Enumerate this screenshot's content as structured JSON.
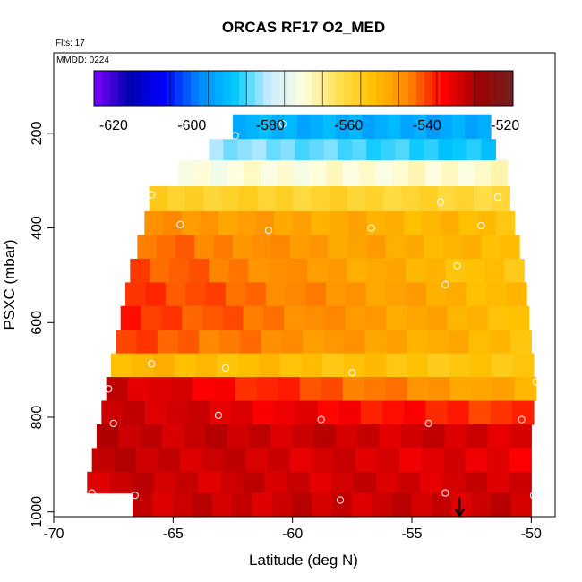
{
  "chart_data": {
    "type": "heatmap",
    "title": "ORCAS RF17 O2_MED",
    "notes": [
      "Flts: 17",
      "MMDD: 0224"
    ],
    "xlabel": "Latitude (deg N)",
    "ylabel": "PSXC (mbar)",
    "xlim": [
      -70,
      -49
    ],
    "ylim": [
      1010,
      30
    ],
    "xticks": [
      -70,
      -65,
      -60,
      -55,
      -50
    ],
    "yticks": [
      200,
      400,
      600,
      800,
      1000
    ],
    "colorbar": {
      "range": [
        -625,
        -518
      ],
      "ticks": [
        -620,
        -600,
        -580,
        -560,
        -540,
        -520
      ],
      "colors": [
        "#7f00ff",
        "#0000b0",
        "#0000ff",
        "#0088ff",
        "#00c8ff",
        "#c8ecff",
        "#ffffe0",
        "#ffe050",
        "#ffc000",
        "#ff8800",
        "#ff0000",
        "#a00000",
        "#702020"
      ]
    },
    "layers": [
      {
        "p": 160,
        "p2": 212,
        "lat": [
          -62.5,
          -51.7
        ],
        "v0": -592,
        "v1": -594
      },
      {
        "p": 212,
        "p2": 257,
        "lat": [
          -63.5,
          -51.5
        ],
        "v0": -582,
        "v1": -590
      },
      {
        "p": 257,
        "p2": 312,
        "lat": [
          -64.8,
          -51.0
        ],
        "v0": -572,
        "v1": -570
      },
      {
        "p": 312,
        "p2": 365,
        "lat": [
          -66.0,
          -50.9
        ],
        "v0": -558,
        "v1": -560
      },
      {
        "p": 365,
        "p2": 415,
        "lat": [
          -66.2,
          -50.7
        ],
        "v0": -546,
        "v1": -554
      },
      {
        "p": 415,
        "p2": 465,
        "lat": [
          -66.5,
          -50.5
        ],
        "v0": -542,
        "v1": -554
      },
      {
        "p": 465,
        "p2": 515,
        "lat": [
          -66.8,
          -50.3
        ],
        "v0": -540,
        "v1": -556
      },
      {
        "p": 515,
        "p2": 565,
        "lat": [
          -67.0,
          -50.2
        ],
        "v0": -538,
        "v1": -554
      },
      {
        "p": 565,
        "p2": 615,
        "lat": [
          -67.2,
          -50.1
        ],
        "v0": -538,
        "v1": -554
      },
      {
        "p": 615,
        "p2": 665,
        "lat": [
          -67.4,
          -50.0
        ],
        "v0": -540,
        "v1": -554
      },
      {
        "p": 665,
        "p2": 715,
        "lat": [
          -67.6,
          -49.9
        ],
        "v0": -552,
        "v1": -556
      },
      {
        "p": 715,
        "p2": 765,
        "lat": [
          -67.8,
          -49.8
        ],
        "v0": -530,
        "v1": -552
      },
      {
        "p": 765,
        "p2": 815,
        "lat": [
          -68.0,
          -49.9
        ],
        "v0": -530,
        "v1": -540
      },
      {
        "p": 815,
        "p2": 865,
        "lat": [
          -68.2,
          -50.0
        ],
        "v0": -530,
        "v1": -532
      },
      {
        "p": 865,
        "p2": 915,
        "lat": [
          -68.4,
          -50.0
        ],
        "v0": -530,
        "v1": -534
      },
      {
        "p": 915,
        "p2": 960,
        "lat": [
          -68.6,
          -50.0
        ],
        "v0": -531,
        "v1": -532
      },
      {
        "p": 960,
        "p2": 1010,
        "lat": [
          -66.7,
          -50.0
        ],
        "v0": -531,
        "v1": -531
      }
    ],
    "points": [
      {
        "lat": -60.4,
        "p": 180
      },
      {
        "lat": -62.4,
        "p": 205
      },
      {
        "lat": -51.5,
        "p": 200
      },
      {
        "lat": -65.9,
        "p": 330
      },
      {
        "lat": -53.8,
        "p": 345
      },
      {
        "lat": -51.4,
        "p": 335
      },
      {
        "lat": -66.4,
        "p": 400
      },
      {
        "lat": -64.7,
        "p": 393
      },
      {
        "lat": -61.0,
        "p": 405
      },
      {
        "lat": -56.7,
        "p": 400
      },
      {
        "lat": -52.1,
        "p": 395
      },
      {
        "lat": -53.1,
        "p": 480
      },
      {
        "lat": -67.7,
        "p": 535
      },
      {
        "lat": -53.6,
        "p": 520
      },
      {
        "lat": -65.9,
        "p": 687
      },
      {
        "lat": -62.8,
        "p": 696
      },
      {
        "lat": -57.5,
        "p": 706
      },
      {
        "lat": -49.8,
        "p": 725
      },
      {
        "lat": -67.7,
        "p": 740
      },
      {
        "lat": -63.1,
        "p": 796
      },
      {
        "lat": -67.5,
        "p": 813
      },
      {
        "lat": -58.8,
        "p": 805
      },
      {
        "lat": -54.3,
        "p": 813
      },
      {
        "lat": -50.4,
        "p": 805
      },
      {
        "lat": -68.4,
        "p": 960
      },
      {
        "lat": -66.6,
        "p": 965
      },
      {
        "lat": -58.0,
        "p": 975
      },
      {
        "lat": -53.6,
        "p": 960
      },
      {
        "lat": -49.9,
        "p": 965
      }
    ],
    "marker": {
      "lat": -53.0
    }
  }
}
